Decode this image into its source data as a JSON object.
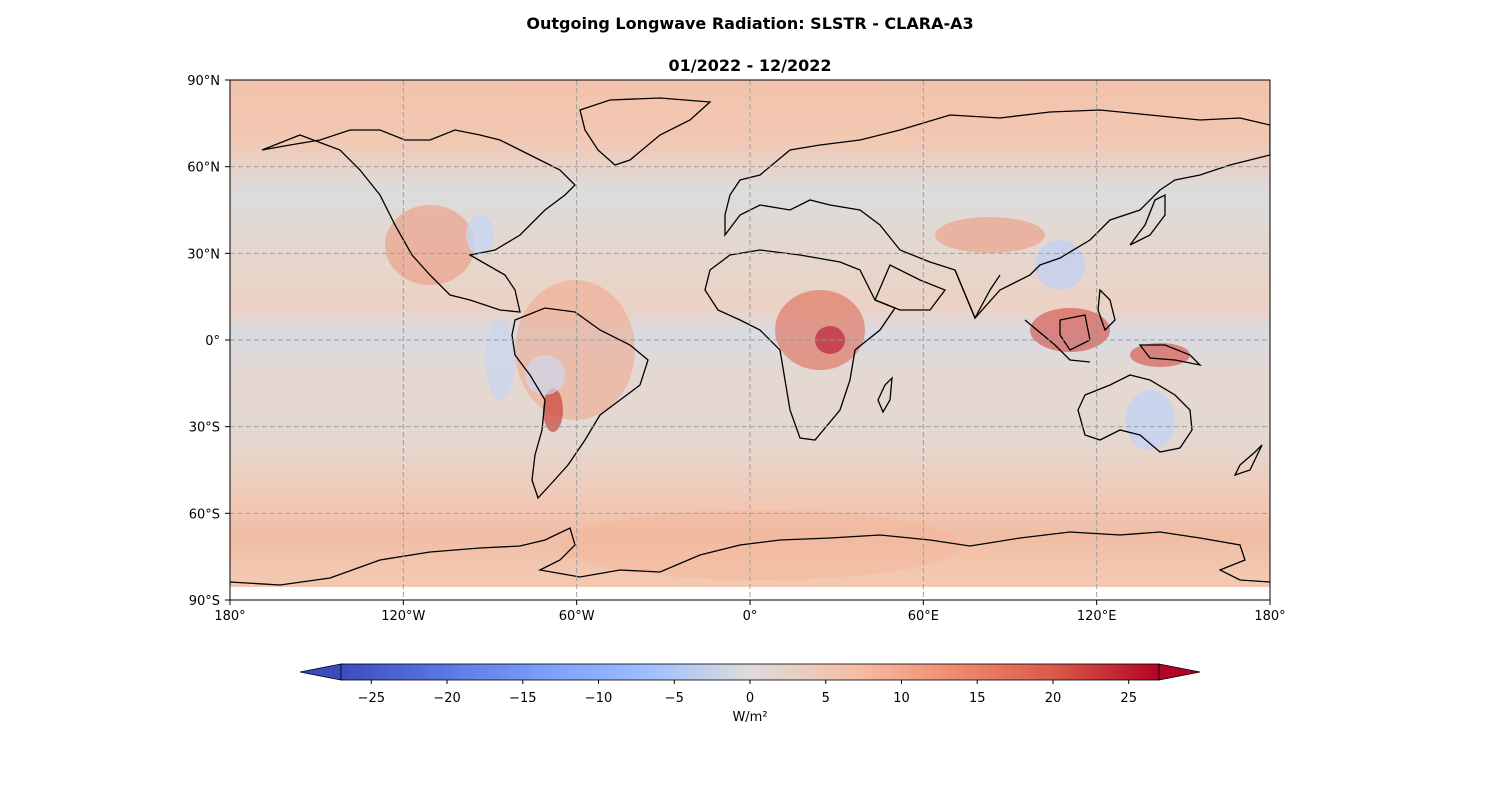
{
  "title": "Outgoing Longwave Radiation: SLSTR - CLARA-A3",
  "subtitle": "01/2022 - 12/2022",
  "map": {
    "projection": "plate-carree",
    "lon_range": [
      -180,
      180
    ],
    "lat_range": [
      -90,
      90
    ],
    "gridlines": true,
    "lon_ticks": [
      {
        "value": -180,
        "label": "180°"
      },
      {
        "value": -120,
        "label": "120°W"
      },
      {
        "value": -60,
        "label": "60°W"
      },
      {
        "value": 0,
        "label": "0°"
      },
      {
        "value": 60,
        "label": "60°E"
      },
      {
        "value": 120,
        "label": "120°E"
      },
      {
        "value": 180,
        "label": "180°"
      }
    ],
    "lat_ticks": [
      {
        "value": 90,
        "label": "90°N"
      },
      {
        "value": 60,
        "label": "60°N"
      },
      {
        "value": 30,
        "label": "30°N"
      },
      {
        "value": 0,
        "label": "0°"
      },
      {
        "value": -30,
        "label": "30°S"
      },
      {
        "value": -60,
        "label": "60°S"
      },
      {
        "value": -90,
        "label": "90°S"
      }
    ],
    "data_extent_lat": [
      -85,
      85
    ]
  },
  "colorbar": {
    "colormap": "coolwarm",
    "range": [
      -27,
      27
    ],
    "extend": "both",
    "ticks": [
      "−25",
      "−20",
      "−15",
      "−10",
      "−5",
      "0",
      "5",
      "10",
      "15",
      "20",
      "25"
    ],
    "tick_values": [
      -25,
      -20,
      -15,
      -10,
      -5,
      0,
      5,
      10,
      15,
      20,
      25
    ],
    "label": "W/m²",
    "colors": {
      "low": "#3b4cc0",
      "mid": "#dddddd",
      "high": "#b40426"
    }
  }
}
